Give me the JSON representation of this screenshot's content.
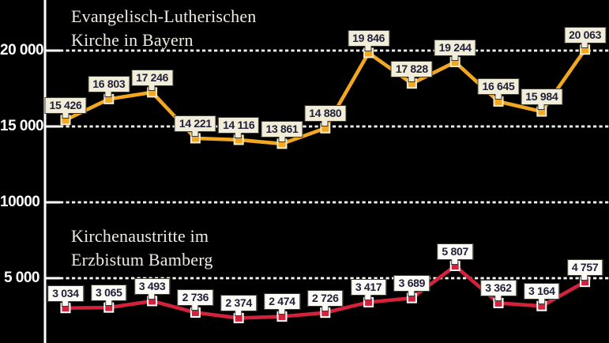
{
  "page": {
    "background": "#000000",
    "axis_color": "#ffffff"
  },
  "annotations": {
    "evangelical": {
      "line1": "Evangelisch-Lutherischen",
      "line2": "Kirche in Bayern"
    },
    "bamberg": {
      "line1": "Kirchenaustritte im",
      "line2": "Erzbistum Bamberg"
    }
  },
  "chart_data": {
    "type": "line",
    "grid": "dashed horizontal white lines, black background, left vertical axis with solid ticks",
    "legend_position": "inline annotations next to each series",
    "y_axis": {
      "ticks": [
        {
          "value": 20000,
          "label": "20 000"
        },
        {
          "value": 15000,
          "label": "15 000"
        },
        {
          "value": 10000,
          "label": "10000"
        },
        {
          "value": 5000,
          "label": "5 000"
        }
      ]
    },
    "ylim": [
      0,
      22000
    ],
    "x_tick_labels_visible": false,
    "series": [
      {
        "name": "Kirchenaustritte Evangelisch-Lutherische Kirche in Bayern",
        "color": "#f1a722",
        "marker_fill": "#f3a81f",
        "marker_border": "#f2ecd2",
        "label_bg": "#f2edd9",
        "label_text_color": "#20203a",
        "values": [
          15426,
          16803,
          17246,
          14221,
          14116,
          13861,
          14880,
          19846,
          17828,
          19244,
          16645,
          15984,
          20063
        ],
        "labels": [
          "15 426",
          "16 803",
          "17 246",
          "14 221",
          "14 116",
          "13 861",
          "14 880",
          "19 846",
          "17 828",
          "19 244",
          "16 645",
          "15 984",
          "20 063"
        ]
      },
      {
        "name": "Kirchenaustritte im Erzbistum Bamberg",
        "color": "#d5223c",
        "marker_fill": "#d5223c",
        "marker_border": "#ffffff",
        "label_bg": "#fcfbf5",
        "label_text_color": "#20203a",
        "values": [
          3034,
          3065,
          3493,
          2736,
          2374,
          2474,
          2726,
          3417,
          3689,
          5807,
          3362,
          3164,
          4757
        ],
        "labels": [
          "3 034",
          "3 065",
          "3 493",
          "2 736",
          "2 374",
          "2 474",
          "2 726",
          "3 417",
          "3 689",
          "5 807",
          "3 362",
          "3 164",
          "4 757"
        ]
      }
    ]
  }
}
